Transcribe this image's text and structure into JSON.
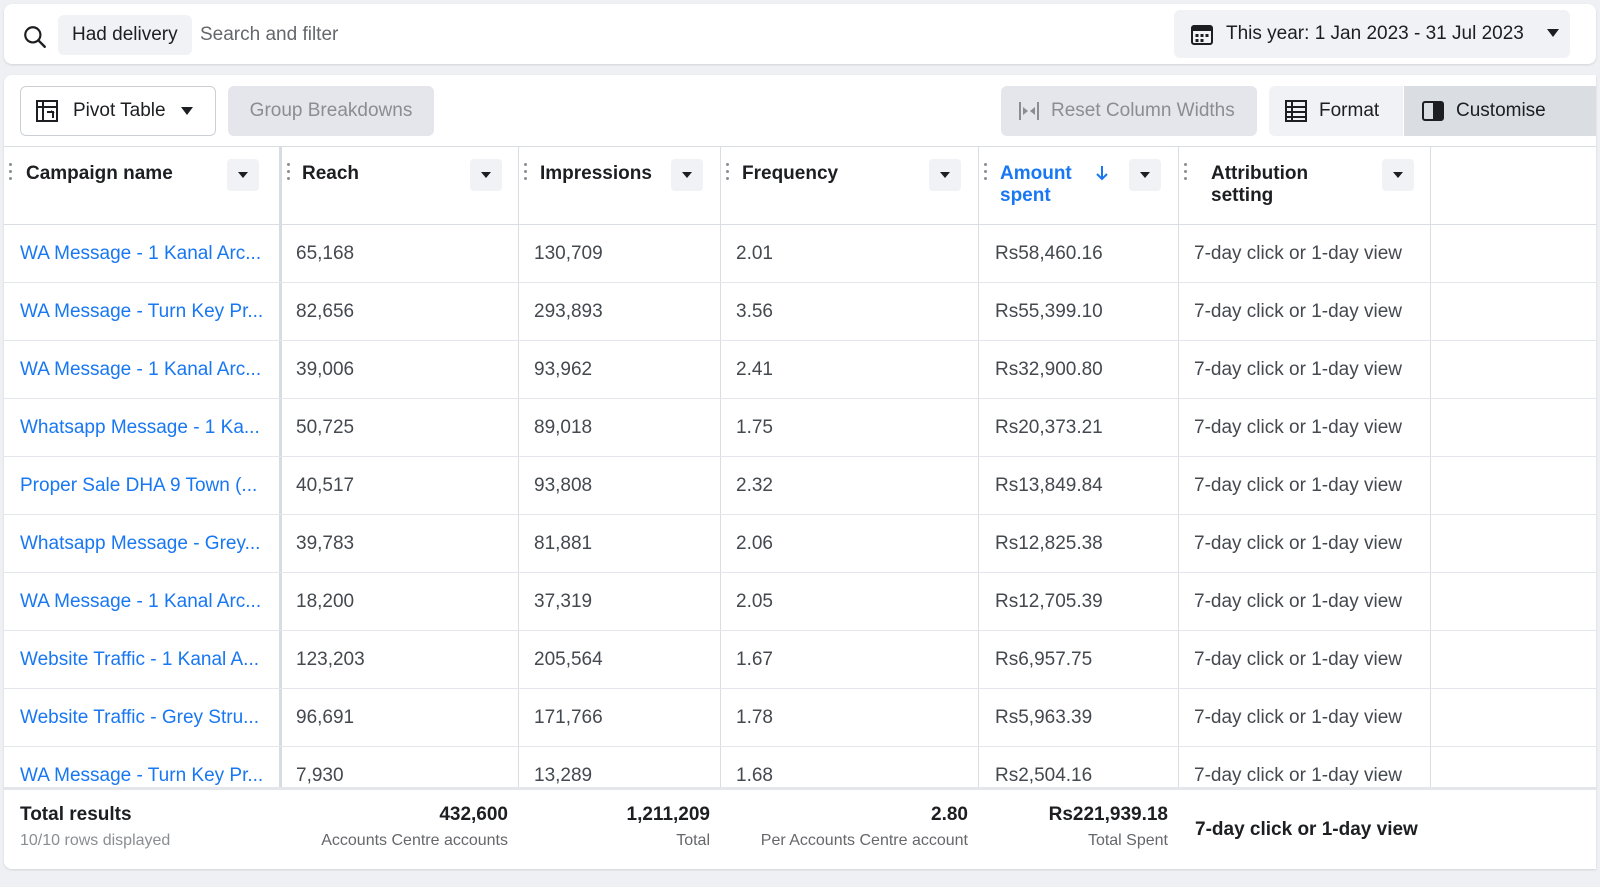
{
  "search": {
    "chip": "Had delivery",
    "placeholder": "Search and filter"
  },
  "date_range": {
    "label": "This year: 1 Jan 2023 - 31 Jul 2023"
  },
  "toolbar": {
    "pivot_label": "Pivot Table",
    "group_label": "Group Breakdowns",
    "reset_label": "Reset Column Widths",
    "format_label": "Format",
    "customise_label": "Customise"
  },
  "columns": {
    "campaign": "Campaign name",
    "reach": "Reach",
    "impressions": "Impressions",
    "frequency": "Frequency",
    "amount_line1": "Amount",
    "amount_line2": "spent",
    "attribution_line1": "Attribution",
    "attribution_line2": "setting"
  },
  "rows": [
    {
      "campaign": "WA Message - 1 Kanal Arc...",
      "reach": "65,168",
      "impressions": "130,709",
      "frequency": "2.01",
      "amount": "Rs58,460.16",
      "attribution": "7-day click or 1-day view"
    },
    {
      "campaign": "WA Message - Turn Key Pr...",
      "reach": "82,656",
      "impressions": "293,893",
      "frequency": "3.56",
      "amount": "Rs55,399.10",
      "attribution": "7-day click or 1-day view"
    },
    {
      "campaign": "WA Message - 1 Kanal Arc...",
      "reach": "39,006",
      "impressions": "93,962",
      "frequency": "2.41",
      "amount": "Rs32,900.80",
      "attribution": "7-day click or 1-day view"
    },
    {
      "campaign": "Whatsapp Message - 1 Ka...",
      "reach": "50,725",
      "impressions": "89,018",
      "frequency": "1.75",
      "amount": "Rs20,373.21",
      "attribution": "7-day click or 1-day view"
    },
    {
      "campaign": "Proper Sale DHA 9 Town (...",
      "reach": "40,517",
      "impressions": "93,808",
      "frequency": "2.32",
      "amount": "Rs13,849.84",
      "attribution": "7-day click or 1-day view"
    },
    {
      "campaign": "Whatsapp Message - Grey...",
      "reach": "39,783",
      "impressions": "81,881",
      "frequency": "2.06",
      "amount": "Rs12,825.38",
      "attribution": "7-day click or 1-day view"
    },
    {
      "campaign": "WA Message - 1 Kanal Arc...",
      "reach": "18,200",
      "impressions": "37,319",
      "frequency": "2.05",
      "amount": "Rs12,705.39",
      "attribution": "7-day click or 1-day view"
    },
    {
      "campaign": "Website Traffic - 1 Kanal A...",
      "reach": "123,203",
      "impressions": "205,564",
      "frequency": "1.67",
      "amount": "Rs6,957.75",
      "attribution": "7-day click or 1-day view"
    },
    {
      "campaign": "Website Traffic - Grey Stru...",
      "reach": "96,691",
      "impressions": "171,766",
      "frequency": "1.78",
      "amount": "Rs5,963.39",
      "attribution": "7-day click or 1-day view"
    },
    {
      "campaign": "WA Message - Turn Key Pr...",
      "reach": "7,930",
      "impressions": "13,289",
      "frequency": "1.68",
      "amount": "Rs2,504.16",
      "attribution": "7-day click or 1-day view"
    }
  ],
  "totals": {
    "title": "Total results",
    "subtitle": "10/10 rows displayed",
    "reach_value": "432,600",
    "reach_sub": "Accounts Centre accounts",
    "impressions_value": "1,211,209",
    "impressions_sub": "Total",
    "frequency_value": "2.80",
    "frequency_sub": "Per Accounts Centre account",
    "amount_value": "Rs221,939.18",
    "amount_sub": "Total Spent",
    "attribution_value": "7-day click or 1-day view"
  },
  "colors": {
    "link": "#1877f2",
    "sorted_header": "#1877f2"
  }
}
